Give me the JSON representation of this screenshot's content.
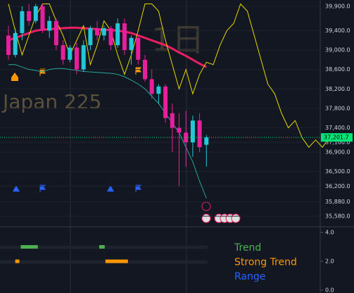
{
  "chart_data": [
    {
      "type": "candlestick",
      "watermark": "1日",
      "symbol_name": "Japan 225",
      "ylim": [
        35363,
        40030
      ],
      "yticks": [
        {
          "value": 39900,
          "label": "39,900.0"
        },
        {
          "value": 39400,
          "label": "39,400.0"
        },
        {
          "value": 39000,
          "label": "39,000.0"
        },
        {
          "value": 38600,
          "label": "38,600.0"
        },
        {
          "value": 38200,
          "label": "38,200.0"
        },
        {
          "value": 37800,
          "label": "37,800.0"
        },
        {
          "value": 37400,
          "label": "37,400.0"
        },
        {
          "value": 37100,
          "label": "37,100.0"
        },
        {
          "value": 36900,
          "label": "36,900.0"
        },
        {
          "value": 36500,
          "label": "36,500.0"
        },
        {
          "value": 36200,
          "label": "36,200.0"
        },
        {
          "value": 35880,
          "label": "35,880.0"
        },
        {
          "value": 35580,
          "label": "35,580.0"
        }
      ],
      "up_color": "#26c6da",
      "down_color": "#e91e9c",
      "open": [
        39300,
        38900,
        39350,
        39800,
        39600,
        39900,
        39400,
        39600,
        39100,
        38800,
        39050,
        38600,
        39100,
        39450,
        39300,
        39450,
        39100,
        39550,
        39000,
        39250,
        38800,
        38400,
        38100,
        38250,
        37700,
        37400,
        37300,
        37100,
        37550,
        37050
      ],
      "high": [
        39500,
        39450,
        39900,
        39950,
        39950,
        39950,
        39700,
        39650,
        39200,
        39100,
        39150,
        39200,
        39500,
        39600,
        39500,
        39500,
        39650,
        39650,
        39300,
        39300,
        38900,
        38600,
        38300,
        38300,
        37900,
        37700,
        37750,
        37650,
        37700,
        37250
      ],
      "low": [
        38800,
        38850,
        39200,
        39500,
        39550,
        39350,
        39250,
        39000,
        38700,
        38750,
        38500,
        38550,
        39000,
        39200,
        39200,
        39000,
        39050,
        38900,
        38700,
        38700,
        38350,
        38000,
        37900,
        37500,
        36900,
        36200,
        36600,
        36800,
        36900,
        36600
      ],
      "close": [
        38900,
        39350,
        39800,
        39600,
        39900,
        39400,
        39600,
        39100,
        38800,
        39050,
        38600,
        39100,
        39450,
        39300,
        39450,
        39100,
        39550,
        39000,
        39250,
        38800,
        38400,
        38100,
        38250,
        37600,
        37400,
        37300,
        37100,
        37550,
        37000,
        37202
      ],
      "last_price": 37201.7,
      "price_label": "37,201.7",
      "price_color": "#00e676",
      "lines": [
        {
          "color": "#e91e63",
          "width": 3,
          "values": [
            39200,
            39250,
            39300,
            39350,
            39400,
            39420,
            39430,
            39440,
            39450,
            39460,
            39460,
            39450,
            39440,
            39430,
            39420,
            39410,
            39400,
            39380,
            39350,
            39300,
            39250,
            39200,
            39150,
            39100,
            39030,
            38950,
            38880,
            38800,
            38720,
            38650
          ]
        },
        {
          "color": "#26a69a",
          "width": 1,
          "values": [
            38700,
            38700,
            38650,
            38600,
            38580,
            38550,
            38600,
            38620,
            38620,
            38600,
            38580,
            38560,
            38550,
            38540,
            38530,
            38520,
            38500,
            38450,
            38380,
            38300,
            38200,
            38050,
            37900,
            37700,
            37500,
            37300,
            37000,
            36700,
            36300,
            35950
          ]
        },
        {
          "color": "#e6d700",
          "width": 1,
          "values": [
            39950,
            39400,
            38900,
            39300,
            39700,
            39950,
            39950,
            39600,
            39300,
            38900,
            39200,
            39500,
            38700,
            39100,
            39600,
            39400,
            38900,
            38500,
            38900,
            39400,
            39950,
            39950,
            39800,
            39200,
            38700,
            38200,
            38600,
            38100,
            38500,
            38750,
            38700,
            39100,
            39400,
            39550,
            39950,
            39800,
            39300,
            38800,
            38300,
            38100,
            37700,
            37400,
            37550,
            37200,
            37000,
            37150,
            37000,
            37200
          ]
        }
      ]
    },
    {
      "type": "range",
      "ylim": [
        0,
        4.4
      ],
      "yticks": [
        {
          "value": 4,
          "label": "4.0"
        },
        {
          "value": 2,
          "label": "2.0"
        },
        {
          "value": 0,
          "label": "0.0"
        }
      ],
      "series": [
        {
          "name": "Trend",
          "color": "#4caf50",
          "values": [
            3,
            3
          ],
          "x": [
            [
              1.8,
              4.3
            ],
            [
              13.3,
              14.1
            ]
          ]
        },
        {
          "name": "Strong Trend",
          "color": "#ff9800",
          "values": [
            2,
            2
          ],
          "x": [
            [
              1.0,
              1.6
            ],
            [
              14.2,
              17.5
            ]
          ]
        },
        {
          "name": "Range",
          "color": "#2962ff",
          "values": [],
          "x": []
        }
      ]
    }
  ]
}
